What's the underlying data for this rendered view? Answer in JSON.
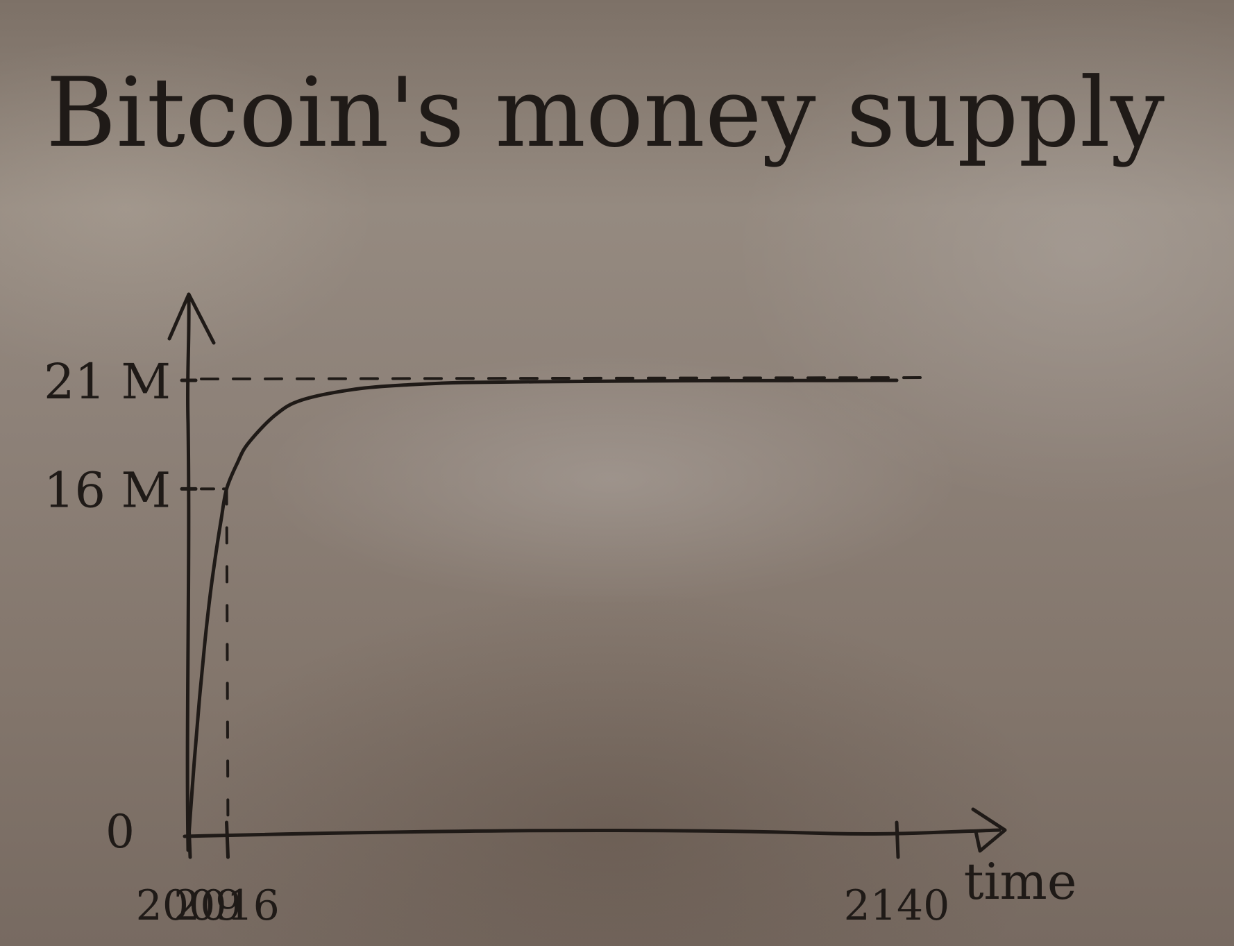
{
  "chart_data": {
    "type": "line",
    "title": "Bitcoin's money supply",
    "xlabel": "time",
    "ylabel": "",
    "x_ticks": [
      "2009",
      "2016",
      "2140"
    ],
    "y_ticks": [
      "0",
      "16 M",
      "21 M"
    ],
    "x_tick_values": [
      2009,
      2016,
      2140
    ],
    "y_tick_values": [
      0,
      16,
      21
    ],
    "xlim": [
      2009,
      2140
    ],
    "ylim": [
      0,
      21
    ],
    "grid": false,
    "series": [
      {
        "x": [
          2009,
          2010,
          2011,
          2012,
          2013,
          2014,
          2015,
          2016,
          2018,
          2020,
          2025,
          2030,
          2040,
          2050,
          2060,
          2080,
          2100,
          2120,
          2140
        ],
        "values": [
          0,
          3.4,
          6.4,
          9.0,
          11.2,
          13.0,
          14.6,
          16.0,
          17.2,
          18.1,
          19.4,
          20.1,
          20.6,
          20.8,
          20.9,
          20.95,
          20.98,
          20.99,
          21.0
        ]
      }
    ],
    "annotations": [
      {
        "type": "dashed-horizontal",
        "y": 21
      },
      {
        "type": "dashed-horizontal",
        "y": 16,
        "x_to": 2016
      },
      {
        "type": "dashed-vertical",
        "x": 2016,
        "y_to": 16
      }
    ],
    "colors": {
      "ink": "#1f1a17"
    }
  }
}
